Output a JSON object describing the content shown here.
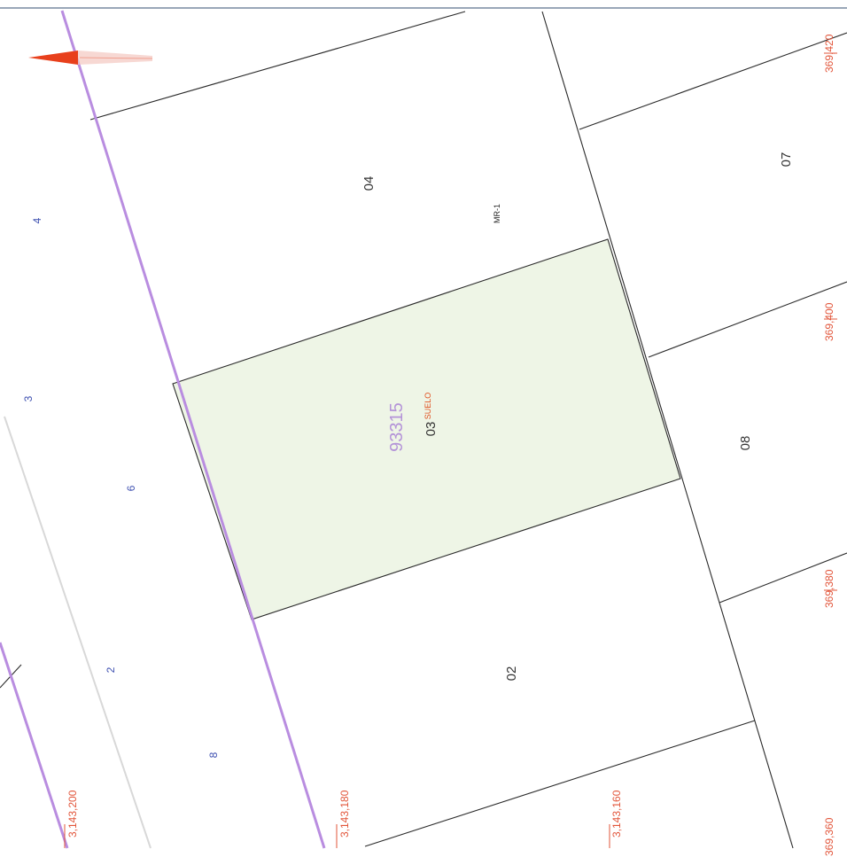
{
  "map": {
    "highlight_color": "#eef5e6",
    "road_color": "#b98de0",
    "grid_label_color": "#e2553a",
    "house_number_color": "#3d4fb0",
    "parcel_line_color": "#2a2a2a",
    "north_arrow_icon": "north-arrow-icon",
    "parcels": [
      {
        "id": "p04",
        "label": "04"
      },
      {
        "id": "p03",
        "label": "03"
      },
      {
        "id": "p02",
        "label": "02"
      },
      {
        "id": "p07",
        "label": "07"
      },
      {
        "id": "p08",
        "label": "08"
      }
    ],
    "block_number": "93315",
    "parcel_tag": "SUELO",
    "zoning": "MR-1",
    "house_numbers": [
      "4",
      "3",
      "6",
      "2",
      "8"
    ],
    "grid_x": [
      "3,143,200",
      "3,143,180",
      "3,143,160"
    ],
    "grid_y": [
      "369,420",
      "369,400",
      "369,380",
      "369,360"
    ]
  }
}
